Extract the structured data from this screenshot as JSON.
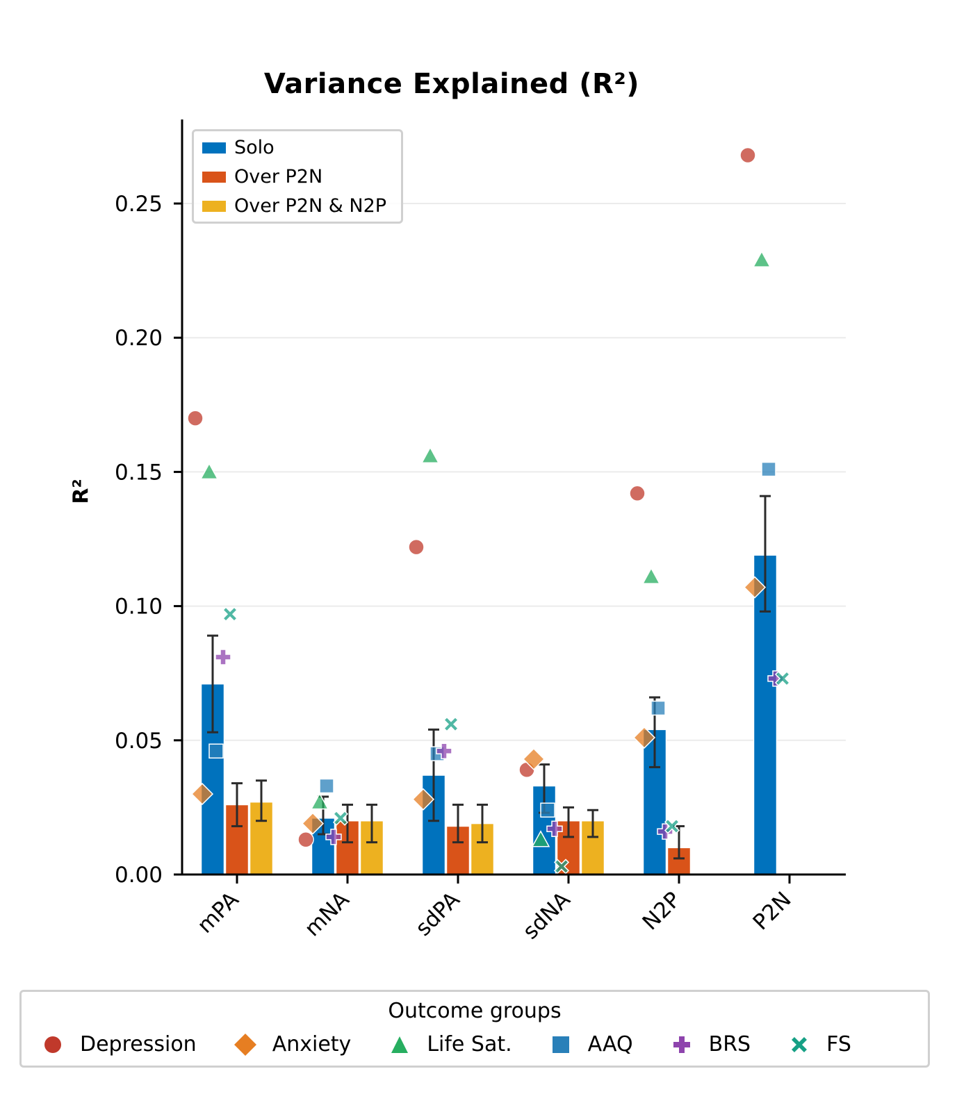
{
  "title": "Variance Explained (R²)",
  "ylabel": "R²",
  "bar_legend": [
    {
      "label": "Solo",
      "color": "#0072bd"
    },
    {
      "label": "Over P2N",
      "color": "#d95319"
    },
    {
      "label": "Over P2N & N2P",
      "color": "#edb120"
    }
  ],
  "outcome_legend": {
    "title": "Outcome groups",
    "items": [
      {
        "label": "Depression",
        "marker": "circle",
        "color": "#c0392b"
      },
      {
        "label": "Anxiety",
        "marker": "diamond",
        "color": "#e67e22"
      },
      {
        "label": "Life Sat.",
        "marker": "triangle",
        "color": "#27ae60"
      },
      {
        "label": "AAQ",
        "marker": "square",
        "color": "#2980b9"
      },
      {
        "label": "BRS",
        "marker": "plus",
        "color": "#8e44ad"
      },
      {
        "label": "FS",
        "marker": "x",
        "color": "#16a085"
      }
    ]
  },
  "chart_data": {
    "type": "bar",
    "title": "Variance Explained (R²)",
    "xlabel": "",
    "ylabel": "R²",
    "ylim": [
      0,
      0.282
    ],
    "yticks": [
      0.0,
      0.05,
      0.1,
      0.15,
      0.2,
      0.25
    ],
    "ytick_labels": [
      "0.00",
      "0.05",
      "0.10",
      "0.15",
      "0.20",
      "0.25"
    ],
    "grid": "horizontal",
    "legend_position": "upper left",
    "categories": [
      "mPA",
      "mNA",
      "sdPA",
      "sdNA",
      "N2P",
      "P2N"
    ],
    "series": [
      {
        "name": "Solo",
        "values": [
          0.071,
          0.021,
          0.037,
          0.033,
          0.054,
          0.119
        ],
        "err_low": [
          0.053,
          0.015,
          0.02,
          0.023,
          0.04,
          0.098
        ],
        "err_high": [
          0.089,
          0.029,
          0.054,
          0.041,
          0.066,
          0.141
        ]
      },
      {
        "name": "Over P2N",
        "values": [
          0.026,
          0.02,
          0.018,
          0.02,
          0.01,
          null
        ],
        "err_low": [
          0.018,
          0.012,
          0.012,
          0.014,
          0.006,
          null
        ],
        "err_high": [
          0.034,
          0.026,
          0.026,
          0.025,
          0.018,
          null
        ]
      },
      {
        "name": "Over P2N & N2P",
        "values": [
          0.027,
          0.02,
          0.019,
          0.02,
          null,
          null
        ],
        "err_low": [
          0.02,
          0.012,
          0.012,
          0.014,
          null,
          null
        ],
        "err_high": [
          0.035,
          0.026,
          0.026,
          0.024,
          null,
          null
        ]
      }
    ],
    "scatter_series": [
      {
        "name": "Depression",
        "values": [
          0.17,
          0.013,
          0.122,
          0.039,
          0.142,
          0.268
        ]
      },
      {
        "name": "Anxiety",
        "values": [
          0.03,
          0.019,
          0.028,
          0.043,
          0.051,
          0.107
        ]
      },
      {
        "name": "Life Sat.",
        "values": [
          0.15,
          0.027,
          0.156,
          0.013,
          0.111,
          0.229
        ]
      },
      {
        "name": "AAQ",
        "values": [
          0.046,
          0.033,
          0.045,
          0.024,
          0.062,
          0.151
        ]
      },
      {
        "name": "BRS",
        "values": [
          0.081,
          0.014,
          0.046,
          0.017,
          0.016,
          0.073
        ]
      },
      {
        "name": "FS",
        "values": [
          0.097,
          0.021,
          0.056,
          0.003,
          0.018,
          0.073
        ]
      }
    ]
  }
}
